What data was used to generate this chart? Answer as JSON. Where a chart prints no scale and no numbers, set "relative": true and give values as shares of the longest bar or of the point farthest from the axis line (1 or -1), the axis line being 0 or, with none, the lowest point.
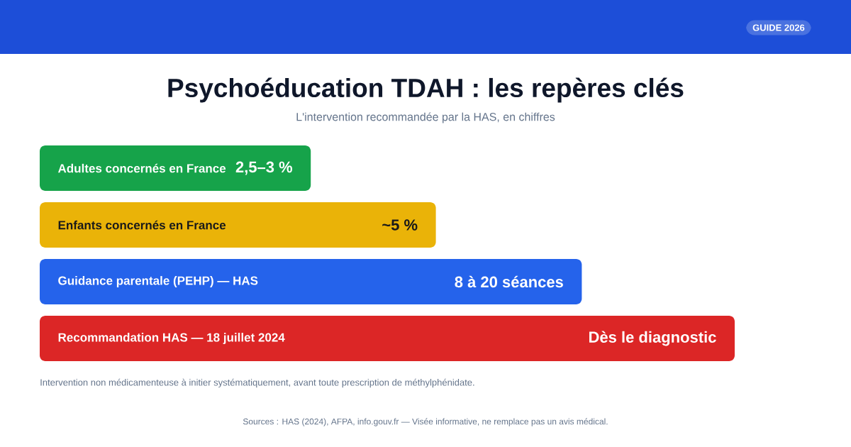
{
  "chart_data": {
    "type": "bar",
    "orientation": "horizontal",
    "relative": true,
    "title": "Psychoéducation TDAH : les repères clés",
    "subtitle": "L'intervention recommandée par la HAS, en chiffres",
    "categories": [
      "Adultes concernés en France",
      "Enfants concernés en France",
      "Guidance parentale (PEHP) — HAS",
      "Recommandation HAS — 18 juillet 2024"
    ],
    "values": [
      0.39,
      0.57,
      0.78,
      1
    ],
    "colors": [
      "#16a34a",
      "#eab308",
      "#2563eb",
      "#dc2626"
    ],
    "annotations": [
      "GUIDE 2026",
      {
        "text": "2,5–3 %",
        "x": 0.39,
        "y": "Adultes concernés en France"
      },
      {
        "text": "~5 %",
        "x": 0.57,
        "y": "Enfants concernés en France"
      },
      {
        "text": "8 à 20 séances",
        "x": 0.78,
        "y": "Guidance parentale (PEHP) — HAS"
      },
      {
        "text": "Dès le diagnostic",
        "x": 1,
        "y": "Recommandation HAS — 18 juillet 2024"
      },
      "Intervention non médicamenteuse à initier systématiquement, avant toute prescription de méthylphénidate.",
      "Sources : HAS (2024), AFPA, info.gouv.fr — Visée informative, ne remplace pas un avis médical."
    ]
  }
}
